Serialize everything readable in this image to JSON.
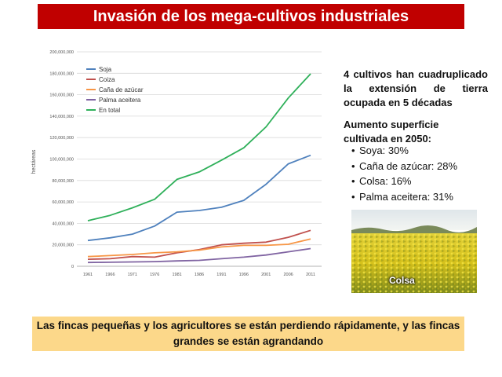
{
  "title": "Invasión de los mega-cultivos industriales",
  "side": {
    "text1": "4 cultivos han cuadruplicado la extensión de tierra ocupada en 5 décadas",
    "text2": "Aumento superficie cultivada en 2050:",
    "bullets": [
      "Soya: 30%",
      "Caña de azúcar: 28%",
      "Colsa: 16%",
      "Palma aceitera: 31%"
    ]
  },
  "photo_label": "Colsa",
  "footer": "Las fincas pequeñas y los agricultores se están perdiendo rápidamente, y las fincas grandes se están agrandando",
  "colors": {
    "title_bg": "#c00000",
    "footer_bg": "#fcd88a"
  },
  "chart_data": {
    "type": "line",
    "ylabel": "hectáreas",
    "x": [
      "1961",
      "1966",
      "1971",
      "1976",
      "1981",
      "1986",
      "1991",
      "1996",
      "2001",
      "2006",
      "2011"
    ],
    "y_ticks": [
      "0",
      "20,000,000",
      "40,000,000",
      "60,000,000",
      "80,000,000",
      "100,000,000",
      "120,000,000",
      "140,000,000",
      "160,000,000",
      "180,000,000",
      "200,000,000"
    ],
    "ylim": [
      0,
      200000000
    ],
    "grid": true,
    "legend_position": "top-left",
    "series": [
      {
        "name": "Soja",
        "color": "#4f81bd",
        "values": [
          24000000,
          26500000,
          30000000,
          37500000,
          50500000,
          52000000,
          55000000,
          61500000,
          76500000,
          95500000,
          103500000
        ]
      },
      {
        "name": "Coiza",
        "color": "#c0504d",
        "values": [
          6500000,
          7000000,
          9000000,
          8500000,
          12500000,
          15500000,
          20000000,
          21500000,
          22500000,
          27000000,
          33500000
        ]
      },
      {
        "name": "Caña de azúcar",
        "color": "#f79646",
        "values": [
          9000000,
          10000000,
          11000000,
          12500000,
          13500000,
          15000000,
          18000000,
          19500000,
          19500000,
          20500000,
          25500000
        ]
      },
      {
        "name": "Palma aceitera",
        "color": "#8064a2",
        "values": [
          3500000,
          3700000,
          4000000,
          4300000,
          5000000,
          5500000,
          7000000,
          8500000,
          10500000,
          13500000,
          16500000
        ]
      },
      {
        "name": "En total",
        "color": "#2fb05a",
        "values": [
          42500000,
          47500000,
          54500000,
          62500000,
          81000000,
          88000000,
          99000000,
          110500000,
          130000000,
          157000000,
          179500000
        ]
      }
    ]
  }
}
